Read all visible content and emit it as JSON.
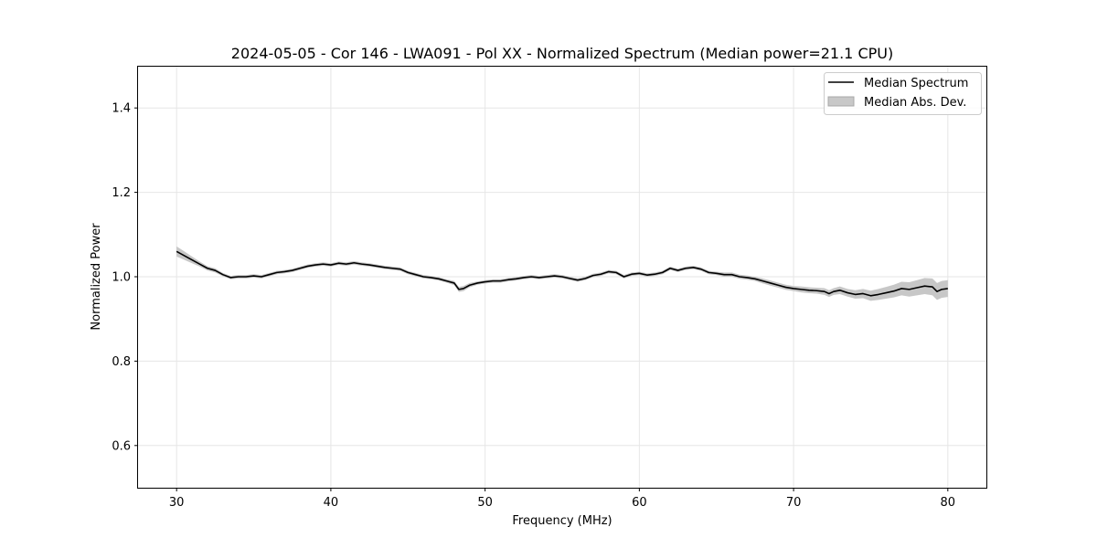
{
  "chart_data": {
    "type": "line",
    "title": "2024-05-05 - Cor 146 - LWA091 - Pol XX - Normalized Spectrum (Median power=21.1 CPU)",
    "xlabel": "Frequency (MHz)",
    "ylabel": "Normalized Power",
    "xlim": [
      27.5,
      82.5
    ],
    "ylim": [
      0.5,
      1.5
    ],
    "xticks": [
      30,
      40,
      50,
      60,
      70,
      80
    ],
    "yticks": [
      0.6,
      0.8,
      1.0,
      1.2,
      1.4
    ],
    "xtick_labels": [
      "30",
      "40",
      "50",
      "60",
      "70",
      "80"
    ],
    "ytick_labels": [
      "0.6",
      "0.8",
      "1.0",
      "1.2",
      "1.4"
    ],
    "grid": true,
    "legend": {
      "location": "top-right",
      "entries": [
        "Median Spectrum",
        "Median Abs. Dev."
      ]
    },
    "colors": {
      "line": "#000000",
      "band": "#bdbdbd",
      "grid": "#e6e6e6"
    },
    "series": [
      {
        "name": "Median Spectrum",
        "x": [
          30.0,
          30.5,
          31.0,
          31.5,
          32.0,
          32.5,
          33.0,
          33.5,
          34.0,
          34.5,
          35.0,
          35.5,
          36.0,
          36.5,
          37.0,
          37.5,
          38.0,
          38.5,
          39.0,
          39.5,
          40.0,
          40.5,
          41.0,
          41.5,
          42.0,
          42.5,
          43.0,
          43.5,
          44.0,
          44.5,
          45.0,
          45.5,
          46.0,
          46.5,
          47.0,
          47.5,
          48.0,
          48.3,
          48.6,
          49.0,
          49.5,
          50.0,
          50.5,
          51.0,
          51.5,
          52.0,
          52.5,
          53.0,
          53.5,
          54.0,
          54.5,
          55.0,
          55.5,
          56.0,
          56.5,
          57.0,
          57.5,
          58.0,
          58.5,
          59.0,
          59.5,
          60.0,
          60.5,
          61.0,
          61.5,
          62.0,
          62.5,
          63.0,
          63.5,
          64.0,
          64.5,
          65.0,
          65.5,
          66.0,
          66.5,
          67.0,
          67.5,
          68.0,
          68.5,
          69.0,
          69.5,
          70.0,
          70.5,
          71.0,
          71.5,
          72.0,
          72.3,
          72.6,
          73.0,
          73.5,
          74.0,
          74.5,
          75.0,
          75.5,
          76.0,
          76.5,
          77.0,
          77.5,
          78.0,
          78.5,
          79.0,
          79.3,
          79.6,
          80.0
        ],
        "values": [
          1.06,
          1.05,
          1.04,
          1.03,
          1.02,
          1.015,
          1.005,
          0.998,
          1.0,
          1.0,
          1.002,
          1.0,
          1.005,
          1.01,
          1.012,
          1.015,
          1.02,
          1.025,
          1.028,
          1.03,
          1.028,
          1.032,
          1.03,
          1.033,
          1.03,
          1.028,
          1.025,
          1.022,
          1.02,
          1.018,
          1.01,
          1.005,
          1.0,
          0.998,
          0.995,
          0.99,
          0.985,
          0.97,
          0.972,
          0.98,
          0.985,
          0.988,
          0.99,
          0.99,
          0.993,
          0.995,
          0.998,
          1.0,
          0.998,
          1.0,
          1.002,
          1.0,
          0.996,
          0.992,
          0.996,
          1.003,
          1.006,
          1.012,
          1.01,
          1.0,
          1.006,
          1.008,
          1.004,
          1.006,
          1.01,
          1.02,
          1.015,
          1.02,
          1.022,
          1.018,
          1.01,
          1.008,
          1.005,
          1.005,
          1.0,
          0.998,
          0.995,
          0.99,
          0.985,
          0.98,
          0.975,
          0.972,
          0.97,
          0.968,
          0.967,
          0.965,
          0.96,
          0.965,
          0.968,
          0.962,
          0.958,
          0.96,
          0.955,
          0.958,
          0.962,
          0.966,
          0.972,
          0.97,
          0.974,
          0.978,
          0.976,
          0.965,
          0.97,
          0.972
        ],
        "mad": [
          0.012,
          0.01,
          0.008,
          0.006,
          0.005,
          0.005,
          0.004,
          0.004,
          0.004,
          0.004,
          0.004,
          0.004,
          0.004,
          0.004,
          0.004,
          0.004,
          0.004,
          0.004,
          0.004,
          0.004,
          0.004,
          0.004,
          0.004,
          0.004,
          0.004,
          0.004,
          0.004,
          0.004,
          0.004,
          0.004,
          0.004,
          0.004,
          0.004,
          0.004,
          0.004,
          0.004,
          0.005,
          0.006,
          0.006,
          0.005,
          0.004,
          0.004,
          0.004,
          0.004,
          0.004,
          0.004,
          0.004,
          0.004,
          0.004,
          0.004,
          0.004,
          0.004,
          0.004,
          0.004,
          0.004,
          0.004,
          0.004,
          0.004,
          0.004,
          0.004,
          0.004,
          0.004,
          0.004,
          0.004,
          0.004,
          0.004,
          0.004,
          0.004,
          0.004,
          0.004,
          0.004,
          0.004,
          0.005,
          0.005,
          0.005,
          0.005,
          0.005,
          0.006,
          0.006,
          0.006,
          0.006,
          0.006,
          0.007,
          0.007,
          0.007,
          0.008,
          0.008,
          0.008,
          0.009,
          0.009,
          0.01,
          0.011,
          0.012,
          0.013,
          0.014,
          0.015,
          0.016,
          0.017,
          0.018,
          0.019,
          0.02,
          0.02,
          0.02,
          0.02
        ]
      }
    ]
  }
}
